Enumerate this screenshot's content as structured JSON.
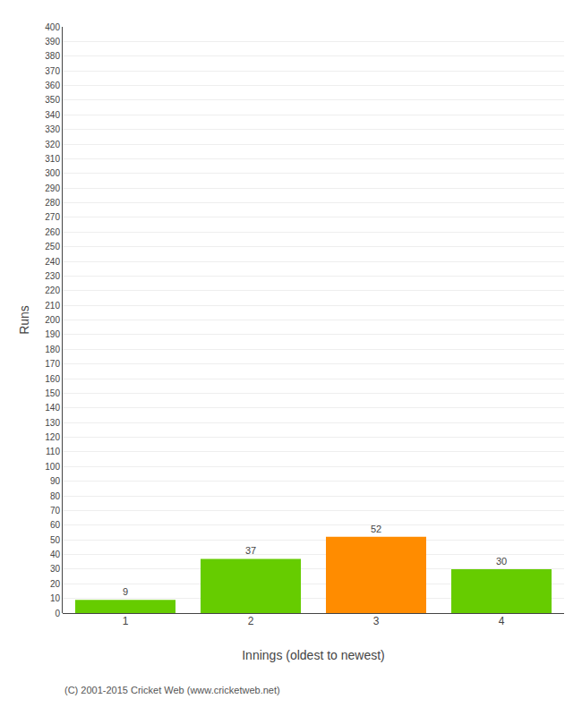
{
  "chart_data": {
    "type": "bar",
    "categories": [
      1,
      2,
      3,
      4
    ],
    "values": [
      9,
      37,
      52,
      30
    ],
    "colors": [
      "#66cc00",
      "#66cc00",
      "#ff8c00",
      "#66cc00"
    ],
    "xlabel": "Innings (oldest to newest)",
    "ylabel": "Runs",
    "ylim": [
      0,
      400
    ],
    "yticks": [
      0,
      10,
      20,
      30,
      40,
      50,
      60,
      70,
      80,
      90,
      100,
      110,
      120,
      130,
      140,
      150,
      160,
      170,
      180,
      190,
      200,
      210,
      220,
      230,
      240,
      250,
      260,
      270,
      280,
      290,
      300,
      310,
      320,
      330,
      340,
      350,
      360,
      370,
      380,
      390,
      400
    ],
    "grid": true,
    "data_labels": true,
    "annotations": [
      "(C) 2001-2015 Cricket Web (www.cricketweb.net)"
    ]
  }
}
